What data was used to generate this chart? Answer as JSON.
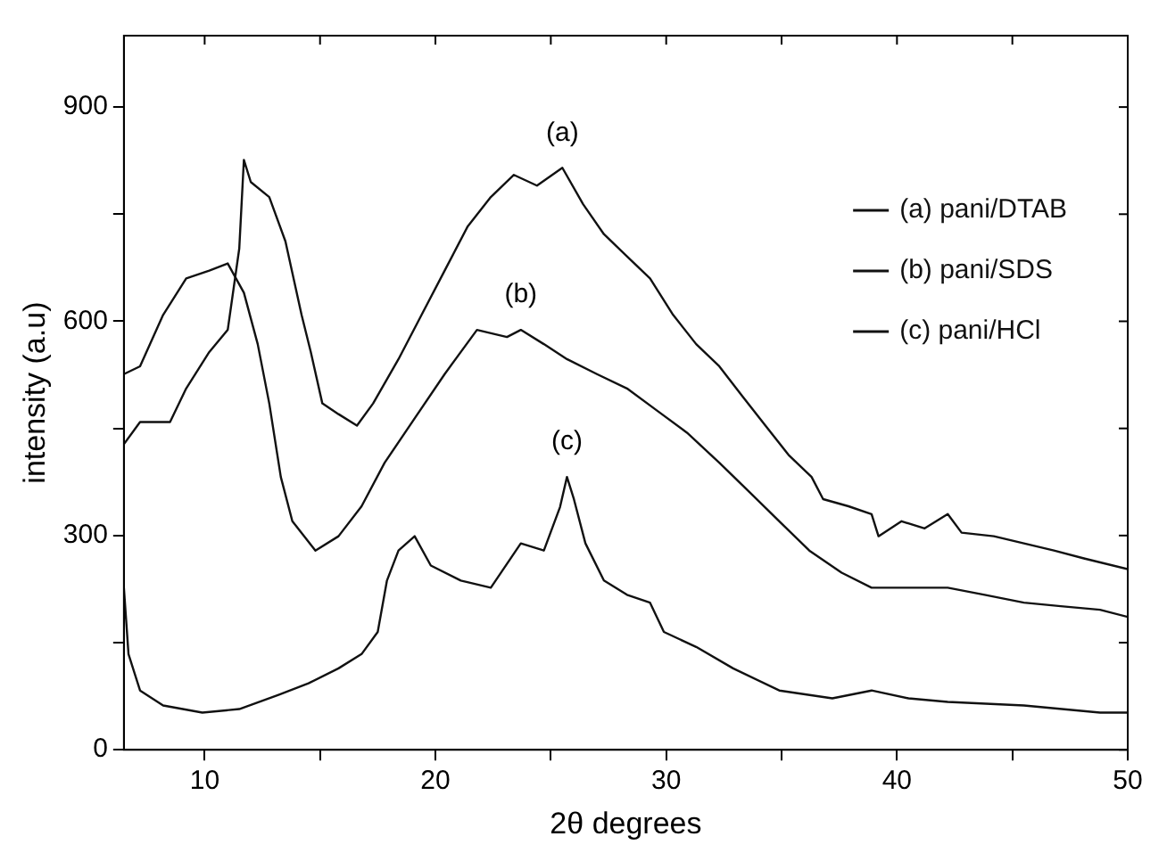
{
  "chart_data": {
    "type": "line",
    "xlabel": "2θ degrees",
    "ylabel": "intensity (a.u)",
    "xlim": [
      6.5,
      50
    ],
    "ylim": [
      0,
      1000
    ],
    "xticks": [
      10,
      {
        "value": 15,
        "label": null
      },
      20,
      {
        "value": 25,
        "label": null
      },
      30,
      {
        "value": 35,
        "label": null
      },
      40,
      {
        "value": 45,
        "label": null
      },
      50
    ],
    "yticks": [
      0,
      {
        "value": 150,
        "label": null
      },
      300,
      {
        "value": 450,
        "label": null
      },
      600,
      {
        "value": 750,
        "label": null
      },
      900
    ],
    "grid": false,
    "legend": "top right",
    "marker": "none",
    "line_style": "solid",
    "annotations": [
      {
        "text": "(a)",
        "x": 25.5,
        "y": 815
      },
      {
        "text": "(b)",
        "x": 23.7,
        "y": 588
      },
      {
        "text": "(c)",
        "x": 25.7,
        "y": 382
      }
    ],
    "series": [
      {
        "name": "(a) pani/DTAB",
        "color": "#111111",
        "x": [
          6.5,
          7.2,
          8.5,
          9.2,
          10.2,
          11.0,
          11.5,
          11.7,
          12.0,
          12.8,
          13.5,
          14.2,
          14.6,
          15.1,
          15.8,
          16.6,
          17.3,
          18.4,
          19.4,
          20.4,
          21.4,
          22.4,
          23.4,
          24.4,
          25.5,
          26.4,
          27.3,
          28.3,
          29.3,
          30.3,
          31.3,
          32.3,
          33.3,
          34.3,
          35.3,
          36.3,
          36.8,
          37.9,
          38.9,
          39.2,
          40.2,
          41.2,
          42.2,
          42.8,
          44.2,
          45.5,
          46.8,
          48.1,
          50
        ],
        "values": [
          428,
          459,
          459,
          506,
          557,
          588,
          702,
          826,
          795,
          774,
          712,
          609,
          557,
          485,
          470,
          454,
          485,
          547,
          609,
          671,
          733,
          774,
          805,
          790,
          815,
          764,
          722,
          691,
          660,
          609,
          568,
          537,
          495,
          454,
          413,
          382,
          351,
          341,
          330,
          299,
          320,
          310,
          330,
          304,
          299,
          289,
          279,
          268,
          253
        ]
      },
      {
        "name": "(b) pani/SDS",
        "color": "#111111",
        "x": [
          6.5,
          7.2,
          8.2,
          9.2,
          10.2,
          11.0,
          11.7,
          12.3,
          12.8,
          13.3,
          13.8,
          14.8,
          15.8,
          16.8,
          17.8,
          19.1,
          20.4,
          21.8,
          23.1,
          23.7,
          24.7,
          25.7,
          27.0,
          28.3,
          29.6,
          30.9,
          32.3,
          33.6,
          34.9,
          36.2,
          37.6,
          38.9,
          40.5,
          42.2,
          43.8,
          45.5,
          47.1,
          48.8,
          50
        ],
        "values": [
          526,
          537,
          609,
          660,
          671,
          681,
          640,
          568,
          485,
          382,
          320,
          279,
          299,
          341,
          402,
          464,
          526,
          588,
          578,
          588,
          568,
          547,
          526,
          506,
          475,
          444,
          402,
          361,
          320,
          279,
          248,
          227,
          227,
          227,
          217,
          206,
          201,
          196,
          186
        ]
      },
      {
        "name": "(c) pani/HCl",
        "color": "#111111",
        "x": [
          6.5,
          6.7,
          7.2,
          8.2,
          9.9,
          11.5,
          13.2,
          14.5,
          15.8,
          16.8,
          17.5,
          17.9,
          18.4,
          19.1,
          19.8,
          21.1,
          22.4,
          23.7,
          24.7,
          25.4,
          25.7,
          26.0,
          26.5,
          27.3,
          28.3,
          29.3,
          29.9,
          31.3,
          32.9,
          34.9,
          37.2,
          38.9,
          40.5,
          42.2,
          45.5,
          48.8,
          50
        ],
        "values": [
          227,
          134,
          83,
          62,
          52,
          57,
          77,
          93,
          114,
          134,
          165,
          237,
          279,
          299,
          258,
          237,
          227,
          289,
          279,
          340,
          382,
          351,
          289,
          237,
          217,
          206,
          165,
          144,
          114,
          83,
          72,
          83,
          72,
          67,
          62,
          52,
          52
        ]
      }
    ]
  }
}
